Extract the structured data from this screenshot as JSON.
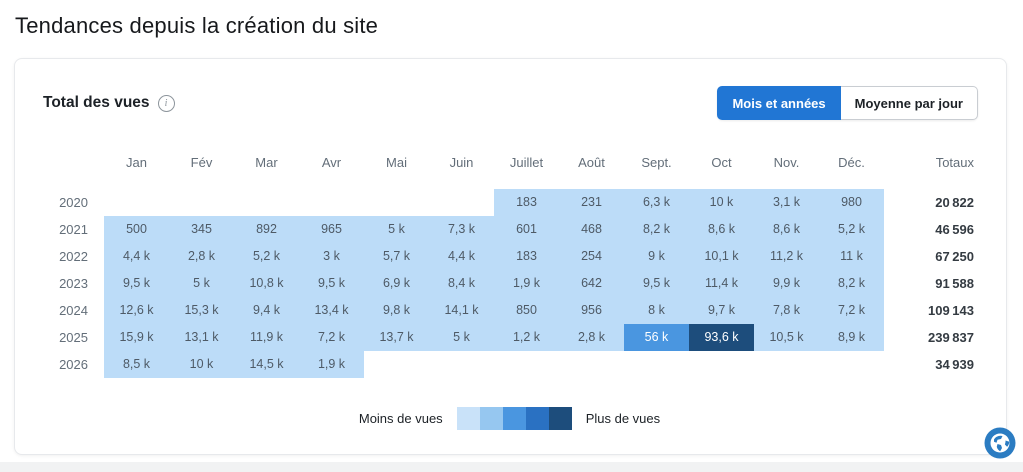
{
  "page": {
    "title": "Tendances depuis la création du site"
  },
  "card": {
    "header": "Total des vues",
    "info_glyph": "i",
    "toggle": {
      "months_years_label": "Mois et années",
      "daily_average_label": "Moyenne par jour"
    }
  },
  "chart_data": {
    "type": "heatmap",
    "title": "Total des vues",
    "columns": [
      "Jan",
      "Fév",
      "Mar",
      "Avr",
      "Mai",
      "Juin",
      "Juillet",
      "Août",
      "Sept.",
      "Oct",
      "Nov.",
      "Déc."
    ],
    "totals_label": "Totaux",
    "rows": [
      {
        "year": "2020",
        "values": [
          "",
          "",
          "",
          "",
          "",
          "",
          "183",
          "231",
          "6,3 k",
          "10 k",
          "3,1 k",
          "980"
        ],
        "levels": [
          0,
          0,
          0,
          0,
          0,
          0,
          1,
          1,
          1,
          1,
          1,
          1
        ],
        "total": "20 822"
      },
      {
        "year": "2021",
        "values": [
          "500",
          "345",
          "892",
          "965",
          "5 k",
          "7,3 k",
          "601",
          "468",
          "8,2 k",
          "8,6 k",
          "8,6 k",
          "5,2 k"
        ],
        "levels": [
          1,
          1,
          1,
          1,
          1,
          1,
          1,
          1,
          1,
          1,
          1,
          1
        ],
        "total": "46 596"
      },
      {
        "year": "2022",
        "values": [
          "4,4 k",
          "2,8 k",
          "5,2 k",
          "3 k",
          "5,7 k",
          "4,4 k",
          "183",
          "254",
          "9 k",
          "10,1 k",
          "11,2 k",
          "11 k"
        ],
        "levels": [
          1,
          1,
          1,
          1,
          1,
          1,
          1,
          1,
          1,
          1,
          1,
          1
        ],
        "total": "67 250"
      },
      {
        "year": "2023",
        "values": [
          "9,5 k",
          "5 k",
          "10,8 k",
          "9,5 k",
          "6,9 k",
          "8,4 k",
          "1,9 k",
          "642",
          "9,5 k",
          "11,4 k",
          "9,9 k",
          "8,2 k"
        ],
        "levels": [
          1,
          1,
          1,
          1,
          1,
          1,
          1,
          1,
          1,
          1,
          1,
          1
        ],
        "total": "91 588"
      },
      {
        "year": "2024",
        "values": [
          "12,6 k",
          "15,3 k",
          "9,4 k",
          "13,4 k",
          "9,8 k",
          "14,1 k",
          "850",
          "956",
          "8 k",
          "9,7 k",
          "7,8 k",
          "7,2 k"
        ],
        "levels": [
          1,
          1,
          1,
          1,
          1,
          1,
          1,
          1,
          1,
          1,
          1,
          1
        ],
        "total": "109 143"
      },
      {
        "year": "2025",
        "values": [
          "15,9 k",
          "13,1 k",
          "11,9 k",
          "7,2 k",
          "13,7 k",
          "5 k",
          "1,2 k",
          "2,8 k",
          "56 k",
          "93,6 k",
          "10,5 k",
          "8,9 k"
        ],
        "levels": [
          1,
          1,
          1,
          1,
          1,
          1,
          1,
          1,
          3,
          5,
          1,
          1
        ],
        "total": "239 837"
      },
      {
        "year": "2026",
        "values": [
          "8,5 k",
          "10 k",
          "14,5 k",
          "1,9 k",
          "",
          "",
          "",
          "",
          "",
          "",
          "",
          ""
        ],
        "levels": [
          1,
          1,
          1,
          1,
          0,
          0,
          0,
          0,
          0,
          0,
          0,
          0
        ],
        "total": "34 939"
      }
    ],
    "legend": {
      "less_label": "Moins de vues",
      "more_label": "Plus de vues",
      "colors": [
        "#c9e2f9",
        "#96c7f0",
        "#4a96e0",
        "#2a71c2",
        "#1d4d7c"
      ]
    },
    "cell_colors": {
      "1": "#bcdcf8",
      "3": "#4a96e0",
      "5": "#1d4d7c"
    },
    "accent_color": "#2176d4"
  },
  "icons": {
    "globe": "globe-icon",
    "info": "info-icon"
  }
}
